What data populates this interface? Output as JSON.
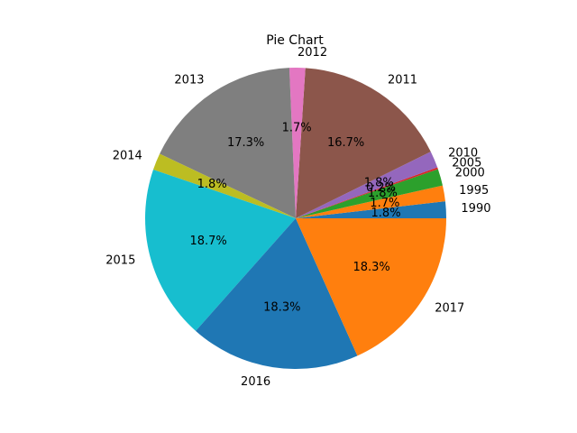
{
  "chart_data": {
    "type": "pie",
    "title": "Pie Chart",
    "start_angle": 0,
    "counterclock": true,
    "colors": [
      "#1f77b4",
      "#ff7f0e",
      "#2ca02c",
      "#d62728",
      "#9467bd",
      "#8c564b",
      "#e377c2",
      "#7f7f7f",
      "#bcbd22",
      "#17becf"
    ],
    "slices": [
      {
        "label": "1990",
        "value": 1.8,
        "pct": "1.8%"
      },
      {
        "label": "1995",
        "value": 1.7,
        "pct": "1.7%"
      },
      {
        "label": "2000",
        "value": 1.8,
        "pct": "1.8%"
      },
      {
        "label": "2005",
        "value": 0.2,
        "pct": "0.2%"
      },
      {
        "label": "2010",
        "value": 1.8,
        "pct": "1.8%"
      },
      {
        "label": "2011",
        "value": 16.7,
        "pct": "16.7%"
      },
      {
        "label": "2012",
        "value": 1.7,
        "pct": "1.7%"
      },
      {
        "label": "2013",
        "value": 17.3,
        "pct": "17.3%"
      },
      {
        "label": "2014",
        "value": 1.8,
        "pct": "1.8%"
      },
      {
        "label": "2015",
        "value": 18.7,
        "pct": "18.7%"
      },
      {
        "label": "2016",
        "value": 18.3,
        "pct": "18.3%"
      },
      {
        "label": "2017",
        "value": 18.3,
        "pct": "18.3%"
      }
    ]
  }
}
